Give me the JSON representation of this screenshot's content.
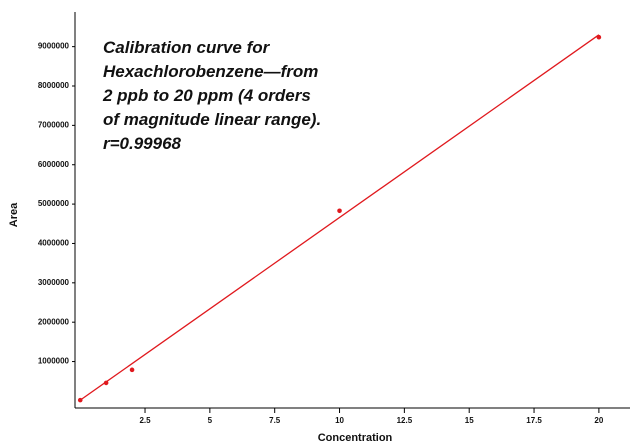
{
  "chart_data": {
    "type": "scatter",
    "annotation": [
      "Calibration curve for",
      "Hexachlorobenzene—from",
      "2 ppb to 20 ppm (4 orders",
      "of magnitude linear range).",
      "r=0.99968"
    ],
    "x_label": "Concentration",
    "y_label": "Area",
    "x": [
      0.002,
      1,
      2,
      10,
      20
    ],
    "values": [
      20000,
      457000,
      790000,
      4830000,
      9240000
    ],
    "color": "#e0191e",
    "fit": {
      "x": [
        0.002,
        20
      ],
      "values": [
        20000,
        9300000
      ]
    },
    "xlim": [
      -0.2,
      21.2
    ],
    "xticks": [
      2.5,
      5,
      7.5,
      10,
      12.5,
      15,
      17.5,
      20
    ],
    "ylim": [
      -180000,
      9880000
    ],
    "yticks": [
      1000000,
      2000000,
      3000000,
      4000000,
      5000000,
      6000000,
      7000000,
      8000000,
      9000000
    ]
  }
}
